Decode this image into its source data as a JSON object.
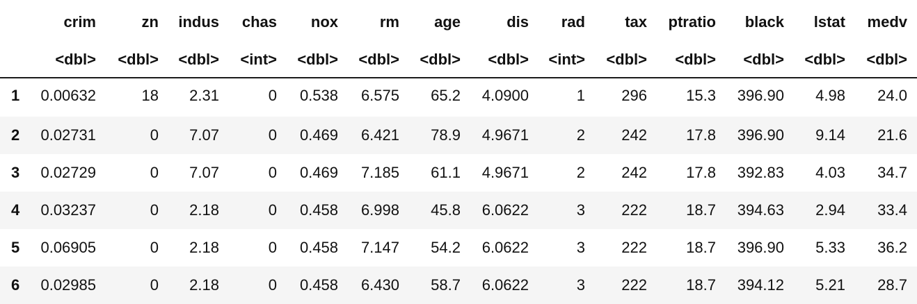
{
  "table": {
    "columns": [
      "crim",
      "zn",
      "indus",
      "chas",
      "nox",
      "rm",
      "age",
      "dis",
      "rad",
      "tax",
      "ptratio",
      "black",
      "lstat",
      "medv"
    ],
    "types": [
      "<dbl>",
      "<dbl>",
      "<dbl>",
      "<int>",
      "<dbl>",
      "<dbl>",
      "<dbl>",
      "<dbl>",
      "<int>",
      "<dbl>",
      "<dbl>",
      "<dbl>",
      "<dbl>",
      "<dbl>"
    ],
    "rows": [
      {
        "index": "1",
        "cells": [
          "0.00632",
          "18",
          "2.31",
          "0",
          "0.538",
          "6.575",
          "65.2",
          "4.0900",
          "1",
          "296",
          "15.3",
          "396.90",
          "4.98",
          "24.0"
        ]
      },
      {
        "index": "2",
        "cells": [
          "0.02731",
          "0",
          "7.07",
          "0",
          "0.469",
          "6.421",
          "78.9",
          "4.9671",
          "2",
          "242",
          "17.8",
          "396.90",
          "9.14",
          "21.6"
        ]
      },
      {
        "index": "3",
        "cells": [
          "0.02729",
          "0",
          "7.07",
          "0",
          "0.469",
          "7.185",
          "61.1",
          "4.9671",
          "2",
          "242",
          "17.8",
          "392.83",
          "4.03",
          "34.7"
        ]
      },
      {
        "index": "4",
        "cells": [
          "0.03237",
          "0",
          "2.18",
          "0",
          "0.458",
          "6.998",
          "45.8",
          "6.0622",
          "3",
          "222",
          "18.7",
          "394.63",
          "2.94",
          "33.4"
        ]
      },
      {
        "index": "5",
        "cells": [
          "0.06905",
          "0",
          "2.18",
          "0",
          "0.458",
          "7.147",
          "54.2",
          "6.0622",
          "3",
          "222",
          "18.7",
          "396.90",
          "5.33",
          "36.2"
        ]
      },
      {
        "index": "6",
        "cells": [
          "0.02985",
          "0",
          "2.18",
          "0",
          "0.458",
          "6.430",
          "58.7",
          "6.0622",
          "3",
          "222",
          "18.7",
          "394.12",
          "5.21",
          "28.7"
        ]
      }
    ]
  }
}
